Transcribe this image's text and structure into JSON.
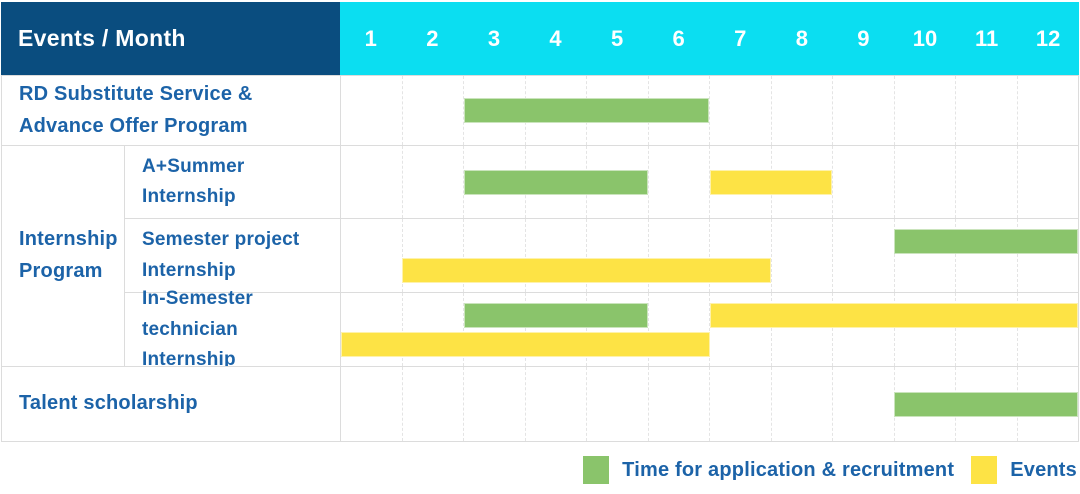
{
  "colors": {
    "navy": "#0a4d7f",
    "cyan": "#0bdef1",
    "application": "#8ac46b",
    "events": "#fde345",
    "label_text": "#1c63a8",
    "border": "#dcdcdc"
  },
  "table": {
    "header": {
      "label": "Events / Month",
      "months": [
        "1",
        "2",
        "3",
        "4",
        "5",
        "6",
        "7",
        "8",
        "9",
        "10",
        "11",
        "12"
      ]
    },
    "groups": [
      {
        "label_lines": [
          "Internship",
          "Program"
        ],
        "start_row": 1,
        "row_count": 3
      }
    ],
    "rows": [
      {
        "label_scope": "full",
        "label_lines": [
          "RD Substitute Service &",
          "Advance Offer Program"
        ],
        "lines": [
          [
            {
              "type": "application",
              "start_month": 3,
              "end_month": 6
            }
          ]
        ]
      },
      {
        "label_scope": "sub",
        "label_lines": [
          "A+Summer",
          "Internship"
        ],
        "lines": [
          [
            {
              "type": "application",
              "start_month": 3,
              "end_month": 5
            },
            {
              "type": "events",
              "start_month": 7,
              "end_month": 8
            }
          ]
        ]
      },
      {
        "label_scope": "sub",
        "label_lines": [
          "Semester project",
          "Internship"
        ],
        "lines": [
          [
            {
              "type": "application",
              "start_month": 10,
              "end_month": 12
            }
          ],
          [
            {
              "type": "events",
              "start_month": 2,
              "end_month": 7
            }
          ]
        ]
      },
      {
        "label_scope": "sub",
        "label_lines": [
          "In-Semester",
          "technician Internship"
        ],
        "lines": [
          [
            {
              "type": "application",
              "start_month": 3,
              "end_month": 5
            },
            {
              "type": "events",
              "start_month": 7,
              "end_month": 12
            }
          ],
          [
            {
              "type": "events",
              "start_month": 1,
              "end_month": 6
            }
          ]
        ]
      },
      {
        "label_scope": "full",
        "label_lines": [
          "Talent scholarship"
        ],
        "lines": [
          [
            {
              "type": "application",
              "start_month": 10,
              "end_month": 12
            }
          ]
        ]
      }
    ]
  },
  "legend": {
    "items": [
      {
        "label": "Time for application & recruitment",
        "type": "application",
        "color": "#8ac46b"
      },
      {
        "label": "Events",
        "type": "events",
        "color": "#fde345"
      }
    ]
  },
  "chart_data": {
    "type": "bar",
    "variant": "gantt",
    "title": "Events / Month",
    "xlabel": "Month",
    "x_ticks": [
      1,
      2,
      3,
      4,
      5,
      6,
      7,
      8,
      9,
      10,
      11,
      12
    ],
    "x_range": [
      1,
      12
    ],
    "grid": "dashed-vertical",
    "legend_position": "bottom-right",
    "series_names": [
      "Time for application & recruitment",
      "Events"
    ],
    "rows": [
      {
        "category": "RD Substitute Service & Advance Offer Program",
        "group": null,
        "spans": [
          {
            "series": "Time for application & recruitment",
            "start_month": 3,
            "end_month": 6
          }
        ]
      },
      {
        "category": "A+Summer Internship",
        "group": "Internship Program",
        "spans": [
          {
            "series": "Time for application & recruitment",
            "start_month": 3,
            "end_month": 5
          },
          {
            "series": "Events",
            "start_month": 7,
            "end_month": 8
          }
        ]
      },
      {
        "category": "Semester project Internship",
        "group": "Internship Program",
        "spans": [
          {
            "series": "Time for application & recruitment",
            "start_month": 10,
            "end_month": 12
          },
          {
            "series": "Events",
            "start_month": 2,
            "end_month": 7
          }
        ]
      },
      {
        "category": "In-Semester technician Internship",
        "group": "Internship Program",
        "spans": [
          {
            "series": "Time for application & recruitment",
            "start_month": 3,
            "end_month": 5
          },
          {
            "series": "Events",
            "start_month": 7,
            "end_month": 12
          },
          {
            "series": "Events",
            "start_month": 1,
            "end_month": 6
          }
        ]
      },
      {
        "category": "Talent scholarship",
        "group": null,
        "spans": [
          {
            "series": "Time for application & recruitment",
            "start_month": 10,
            "end_month": 12
          }
        ]
      }
    ]
  }
}
